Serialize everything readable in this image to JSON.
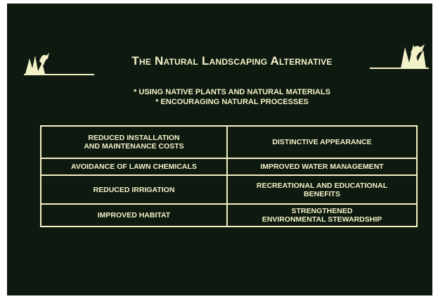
{
  "slide": {
    "title": "The Natural Landscaping Alternative",
    "bullets": [
      "* USING NATIVE PLANTS AND NATURAL MATERIALS",
      "* ENCOURAGING NATURAL PROCESSES"
    ],
    "table": {
      "rows": [
        [
          "REDUCED INSTALLATION\nAND MAINTENANCE COSTS",
          "DISTINCTIVE APPEARANCE"
        ],
        [
          "AVOIDANCE OF LAWN CHEMICALS",
          "IMPROVED WATER MANAGEMENT"
        ],
        [
          "REDUCED IRRIGATION",
          "RECREATIONAL AND EDUCATIONAL\nBENEFITS"
        ],
        [
          "IMPROVED HABITAT",
          "STRENGTHENED\nENVIRONMENTAL STEWARDSHIP"
        ]
      ]
    }
  }
}
